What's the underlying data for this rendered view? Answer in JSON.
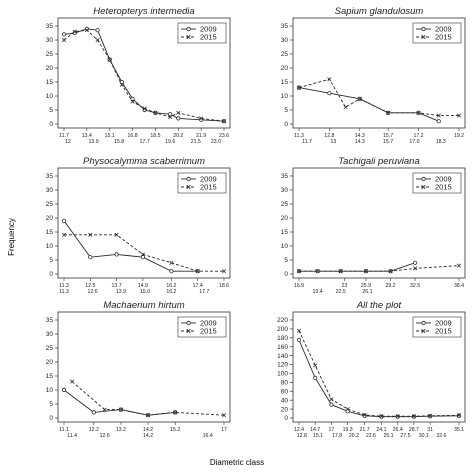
{
  "figure": {
    "ylabel": "Frequency",
    "xlabel": "Diametric class"
  },
  "legend_labels": [
    "2009",
    "2015"
  ],
  "colors": {
    "line": "#2b2b2b",
    "axis": "#333333"
  },
  "chart_data": [
    {
      "type": "line",
      "title": "Heteropterys intermedia",
      "ylim": [
        0,
        35
      ],
      "yticks": [
        0,
        5,
        10,
        15,
        20,
        25,
        30,
        35
      ],
      "x_labels_top": [
        "11.7",
        "13.4",
        "15.1",
        "16.8",
        "18.5",
        "20.2",
        "21.9",
        "23.6"
      ],
      "x_labels_bottom": [
        "12",
        "13.9",
        "15.8",
        "17.7",
        "19.6",
        "21.5",
        "23.0"
      ],
      "legend": "top-right",
      "series": [
        {
          "name": "2009",
          "marker": "o",
          "x": [
            11.7,
            12.5,
            13.4,
            14.2,
            15.1,
            16.0,
            16.8,
            17.7,
            18.5,
            19.6,
            20.2,
            21.9,
            23.6
          ],
          "y": [
            32,
            32.5,
            34,
            33.5,
            23,
            15,
            9,
            5,
            4,
            3.5,
            2,
            1.5,
            1
          ]
        },
        {
          "name": "2015",
          "marker": "x",
          "x": [
            11.7,
            12.5,
            13.4,
            14.2,
            15.1,
            16.0,
            16.8,
            17.7,
            18.5,
            19.6,
            20.2,
            21.9,
            23.6
          ],
          "y": [
            30,
            33,
            33.5,
            30,
            23,
            14,
            8,
            5.5,
            4,
            2.5,
            4,
            2,
            1
          ]
        }
      ]
    },
    {
      "type": "line",
      "title": "Sapium glandulosum",
      "ylim": [
        0,
        35
      ],
      "yticks": [
        0,
        5,
        10,
        15,
        20,
        25,
        30,
        35
      ],
      "x_labels_top": [
        "11.3",
        "12.8",
        "14.3",
        "15.7",
        "17.2",
        "19.2"
      ],
      "x_labels_bottom": [
        "11.7",
        "13",
        "14.3",
        "15.7",
        "17.0",
        "18.3"
      ],
      "legend": "top-right",
      "series": [
        {
          "name": "2009",
          "marker": "o",
          "x": [
            11.3,
            12.8,
            14.3,
            15.7,
            17.2,
            18.2
          ],
          "y": [
            13,
            11,
            9,
            4,
            4,
            1
          ]
        },
        {
          "name": "2015",
          "marker": "x",
          "x": [
            11.3,
            12.8,
            13.6,
            14.3,
            15.7,
            17.2,
            18.2,
            19.2
          ],
          "y": [
            13,
            16,
            6,
            9,
            4,
            4,
            3,
            3
          ]
        }
      ]
    },
    {
      "type": "line",
      "title": "Physocalymma scaberrimum",
      "ylim": [
        0,
        35
      ],
      "yticks": [
        0,
        5,
        10,
        15,
        20,
        25,
        30,
        35
      ],
      "x_labels_top": [
        "11.3",
        "12.5",
        "13.7",
        "14.9",
        "16.2",
        "17.4",
        "18.6"
      ],
      "x_labels_bottom": [
        "11.3",
        "12.6",
        "13.9",
        "15.0",
        "16.2",
        "17.7"
      ],
      "legend": "top-right",
      "series": [
        {
          "name": "2009",
          "marker": "o",
          "x": [
            11.3,
            12.5,
            13.7,
            14.9,
            16.2,
            17.4
          ],
          "y": [
            19,
            6,
            7,
            6,
            1,
            1
          ]
        },
        {
          "name": "2015",
          "marker": "x",
          "x": [
            11.3,
            12.5,
            13.7,
            14.9,
            16.2,
            17.4,
            18.6
          ],
          "y": [
            14,
            14,
            14,
            7,
            4,
            1,
            1
          ]
        }
      ]
    },
    {
      "type": "line",
      "title": "Tachigali peruviana",
      "ylim": [
        0,
        35
      ],
      "yticks": [
        0,
        5,
        10,
        15,
        20,
        25,
        30,
        35
      ],
      "x_labels_top": [
        "16.9",
        "23",
        "25.9",
        "29.2",
        "32.5",
        "38.4"
      ],
      "x_labels_bottom": [
        "19.4",
        "22.5",
        "26.1"
      ],
      "legend": "top-right",
      "series": [
        {
          "name": "2009",
          "marker": "o",
          "x": [
            16.9,
            19.4,
            22.5,
            25.9,
            29.2,
            32.5
          ],
          "y": [
            1,
            1,
            1,
            1,
            1,
            4
          ]
        },
        {
          "name": "2015",
          "marker": "x",
          "x": [
            16.9,
            19.4,
            22.5,
            25.9,
            29.2,
            32.5,
            38.4
          ],
          "y": [
            1,
            1,
            1,
            1,
            1,
            2,
            3
          ]
        }
      ]
    },
    {
      "type": "line",
      "title": "Machaerium hirtum",
      "ylim": [
        0,
        35
      ],
      "yticks": [
        0,
        5,
        10,
        15,
        20,
        25,
        30,
        35
      ],
      "x_labels_top": [
        "11.1",
        "12.2",
        "13.2",
        "14.2",
        "15.2",
        "17"
      ],
      "x_labels_bottom": [
        "11.4",
        "12.6",
        "14.2",
        "16.4"
      ],
      "legend": "top-right",
      "series": [
        {
          "name": "2009",
          "marker": "o",
          "x": [
            11.1,
            12.2,
            13.2,
            14.2,
            15.2
          ],
          "y": [
            10,
            2,
            3,
            1,
            2
          ]
        },
        {
          "name": "2015",
          "marker": "x",
          "x": [
            11.4,
            12.6,
            13.2,
            14.2,
            15.2,
            17
          ],
          "y": [
            13,
            3,
            3,
            1,
            2,
            1
          ]
        }
      ]
    },
    {
      "type": "line",
      "title": "All the plot",
      "ylim": [
        0,
        220
      ],
      "yticks": [
        0,
        20,
        40,
        60,
        80,
        100,
        120,
        140,
        160,
        180,
        200,
        220
      ],
      "x_labels_top": [
        "12.4",
        "14.7",
        "17",
        "19.3",
        "21.7",
        "24.1",
        "26.4",
        "28.7",
        "31",
        "35.1"
      ],
      "x_labels_bottom": [
        "12.8",
        "15.1",
        "17.8",
        "20.2",
        "22.6",
        "25.1",
        "27.5",
        "30.1",
        "32.6"
      ],
      "legend": "top-right",
      "series": [
        {
          "name": "2009",
          "marker": "o",
          "x": [
            12.4,
            14.7,
            17,
            19.3,
            21.7,
            24.1,
            26.4,
            28.7,
            31,
            35.1
          ],
          "y": [
            175,
            90,
            30,
            15,
            5,
            3,
            3,
            3,
            4,
            5
          ]
        },
        {
          "name": "2015",
          "marker": "x",
          "x": [
            12.4,
            14.7,
            17,
            19.3,
            21.7,
            24.1,
            26.4,
            28.7,
            31,
            35.1
          ],
          "y": [
            196,
            118,
            42,
            20,
            7,
            4,
            4,
            4,
            5,
            6
          ]
        }
      ]
    }
  ]
}
